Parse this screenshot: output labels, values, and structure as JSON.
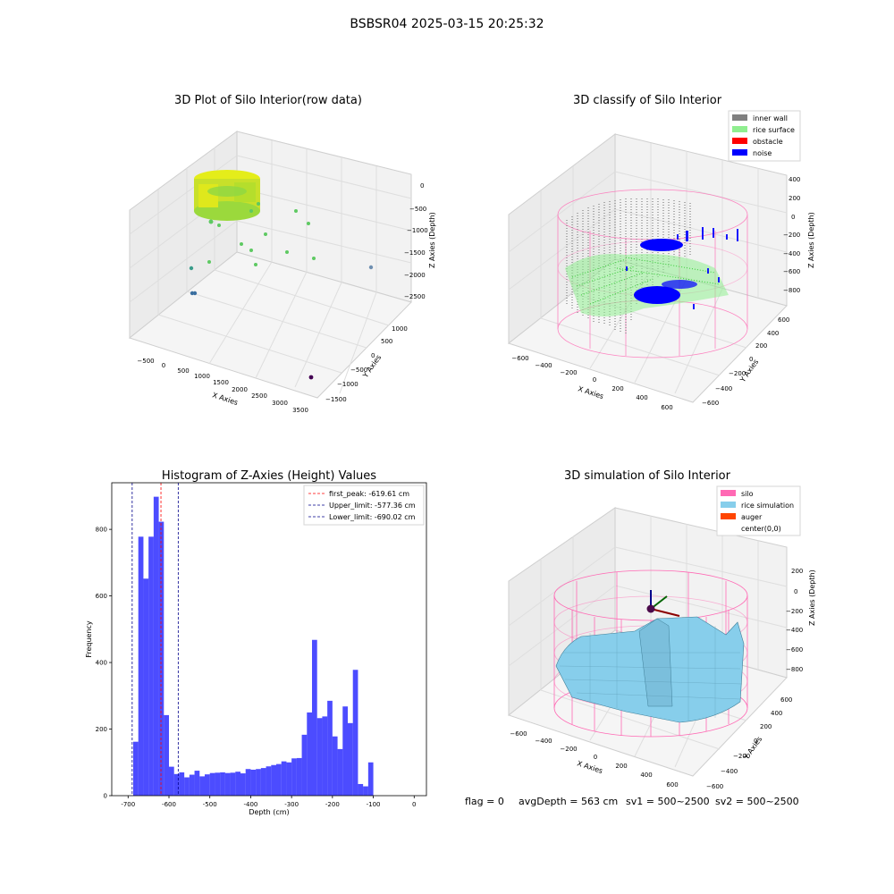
{
  "figure": {
    "suptitle": "BSBSR04 2025-03-15 20:25:32",
    "status": {
      "flag": "flag = 0",
      "avg_depth": "avgDepth = 563 cm",
      "sv1": "sv1 = 500~2500",
      "sv2": "sv2 = 500~2500"
    }
  },
  "colors": {
    "hist_bar": "#0000ff",
    "peak_line": "#ff0000",
    "limit_line": "#00008b",
    "inner_wall": "#808080",
    "rice_surface": "#90ee90",
    "obstacle": "#ff0000",
    "noise": "#0000ff",
    "silo": "#ff69b4",
    "rice_simulation": "#87ceeb",
    "auger": "#ff4500"
  },
  "chart_data": [
    {
      "type": "scatter",
      "projection": "3d",
      "title": "3D Plot of Silo Interior(row data)",
      "xlabel": "X Axies",
      "ylabel": "Y Axies",
      "zlabel": "Z Axies (Depth)",
      "x_ticks": [
        "−500",
        "0",
        "500",
        "1000",
        "1500",
        "2000",
        "2500",
        "3000",
        "3500"
      ],
      "y_ticks": [
        "−1500",
        "−1000",
        "−500",
        "0",
        "500",
        "1000"
      ],
      "z_ticks": [
        "−2500",
        "−2000",
        "−1500",
        "−1000",
        "−500",
        "0"
      ],
      "grid": true
    },
    {
      "type": "scatter",
      "projection": "3d",
      "title": "3D classify of Silo Interior",
      "xlabel": "X Axies",
      "ylabel": "Y Axies",
      "zlabel": "Z Axies (Depth)",
      "x_ticks": [
        "−600",
        "−400",
        "−200",
        "0",
        "200",
        "400",
        "600"
      ],
      "y_ticks": [
        "−600",
        "−400",
        "−200",
        "0",
        "200",
        "400",
        "600"
      ],
      "z_ticks": [
        "−800",
        "−600",
        "−400",
        "−200",
        "0",
        "200",
        "400"
      ],
      "legend": [
        "inner wall",
        "rice surface",
        "obstacle",
        "noise"
      ],
      "legend_position": "top-right",
      "grid": true
    },
    {
      "type": "bar",
      "title": "Histogram of Z-Axies (Height) Values",
      "xlabel": "Depth (cm)",
      "ylabel": "Frequency",
      "xlim": [
        -740,
        30
      ],
      "ylim": [
        0,
        940
      ],
      "x_ticks": [
        -700,
        -600,
        -500,
        -400,
        -300,
        -200,
        -100,
        0
      ],
      "y_ticks": [
        0,
        200,
        400,
        600,
        800
      ],
      "bin_width": 12.5,
      "bins": [
        [
          -681.25,
          162
        ],
        [
          -668.75,
          778
        ],
        [
          -656.25,
          652
        ],
        [
          -643.75,
          778
        ],
        [
          -631.25,
          898
        ],
        [
          -618.75,
          823
        ],
        [
          -606.25,
          242
        ],
        [
          -593.75,
          87
        ],
        [
          -581.25,
          65
        ],
        [
          -568.75,
          70
        ],
        [
          -556.25,
          55
        ],
        [
          -543.75,
          63
        ],
        [
          -531.25,
          75
        ],
        [
          -518.75,
          58
        ],
        [
          -506.25,
          64
        ],
        [
          -493.75,
          68
        ],
        [
          -481.25,
          69
        ],
        [
          -468.75,
          70
        ],
        [
          -456.25,
          68
        ],
        [
          -443.75,
          69
        ],
        [
          -431.25,
          72
        ],
        [
          -418.75,
          67
        ],
        [
          -406.25,
          80
        ],
        [
          -393.75,
          78
        ],
        [
          -381.25,
          80
        ],
        [
          -368.75,
          83
        ],
        [
          -356.25,
          88
        ],
        [
          -343.75,
          92
        ],
        [
          -331.25,
          95
        ],
        [
          -318.75,
          103
        ],
        [
          -306.25,
          100
        ],
        [
          -293.75,
          112
        ],
        [
          -281.25,
          113
        ],
        [
          -268.75,
          183
        ],
        [
          -256.25,
          250
        ],
        [
          -243.75,
          468
        ],
        [
          -231.25,
          233
        ],
        [
          -218.75,
          238
        ],
        [
          -206.25,
          285
        ],
        [
          -193.75,
          178
        ],
        [
          -181.25,
          140
        ],
        [
          -168.75,
          268
        ],
        [
          -156.25,
          218
        ],
        [
          -143.75,
          378
        ],
        [
          -131.25,
          35
        ],
        [
          -118.75,
          28
        ],
        [
          -106.25,
          100
        ]
      ],
      "vlines": [
        {
          "x": -619.61,
          "label": "first_peak: -619.61 cm",
          "color": "#ff0000"
        },
        {
          "x": -577.36,
          "label": "Upper_limit: -577.36 cm",
          "color": "#00008b"
        },
        {
          "x": -690.02,
          "label": "Lower_limit: -690.02 cm",
          "color": "#00008b"
        }
      ],
      "legend_position": "top-right"
    },
    {
      "type": "surface",
      "projection": "3d",
      "title": "3D simulation of Silo Interior",
      "xlabel": "X Axies",
      "ylabel": "Y Axies",
      "zlabel": "Z Axies (Depth)",
      "x_ticks": [
        "−600",
        "−400",
        "−200",
        "0",
        "200",
        "400",
        "600"
      ],
      "y_ticks": [
        "−600",
        "−400",
        "−200",
        "0",
        "200",
        "400",
        "600"
      ],
      "z_ticks": [
        "−800",
        "−600",
        "−400",
        "−200",
        "0",
        "200"
      ],
      "legend": [
        "silo",
        "rice simulation",
        "auger",
        "center(0,0)"
      ],
      "legend_position": "top-right",
      "grid": true
    }
  ]
}
